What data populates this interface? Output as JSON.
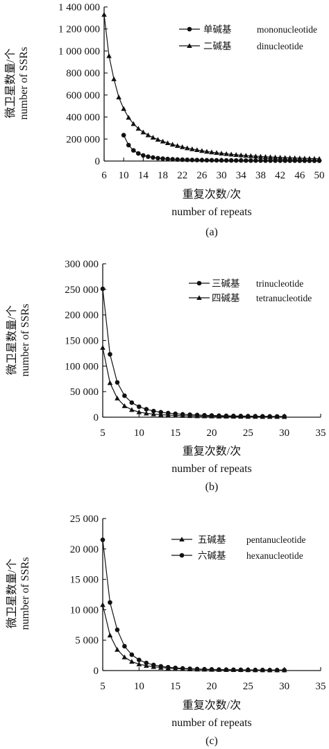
{
  "chart_data": [
    {
      "type": "line",
      "panel_label": "(a)",
      "xlabel_cn": "重复次数/次",
      "xlabel_en": "number of repeats",
      "ylabel_cn": "微卫星数量/个",
      "ylabel_en": "number of SSRs",
      "x_ticks": [
        "6",
        "10",
        "14",
        "18",
        "22",
        "26",
        "30",
        "34",
        "38",
        "42",
        "46",
        "50"
      ],
      "y_ticks": [
        "0",
        "200 000",
        "400 000",
        "600 000",
        "800 000",
        "1 000 000",
        "1 200 000",
        "1 400 000"
      ],
      "xlim": [
        6,
        50
      ],
      "ylim": [
        0,
        1400000
      ],
      "legend_placement": "top-right",
      "series": [
        {
          "name_cn": "单碱基",
          "name_en": "mononucleotide",
          "marker": "circle",
          "x": [
            10,
            11,
            12,
            13,
            14,
            15,
            16,
            17,
            18,
            19,
            20,
            21,
            22,
            23,
            24,
            25,
            26,
            27,
            28,
            29,
            30,
            31,
            32,
            33,
            34,
            35,
            36,
            37,
            38,
            39,
            40,
            41,
            42,
            43,
            44,
            45,
            46,
            47,
            48,
            49,
            50
          ],
          "values": [
            235000,
            145000,
            97000,
            69000,
            51000,
            40000,
            32000,
            26000,
            22000,
            18500,
            16000,
            14000,
            12500,
            11000,
            10000,
            9000,
            8300,
            7700,
            7200,
            6700,
            6300,
            5900,
            5600,
            5300,
            5000,
            4800,
            4600,
            4400,
            4200,
            4000,
            3900,
            3750,
            3600,
            3500,
            3400,
            3300,
            3200,
            3100,
            3000,
            2950,
            2900
          ]
        },
        {
          "name_cn": "二碱基",
          "name_en": "dinucleotide",
          "marker": "triangle",
          "x": [
            6,
            7,
            8,
            9,
            10,
            11,
            12,
            13,
            14,
            15,
            16,
            17,
            18,
            19,
            20,
            21,
            22,
            23,
            24,
            25,
            26,
            27,
            28,
            29,
            30,
            31,
            32,
            33,
            34,
            35,
            36,
            37,
            38,
            39,
            40,
            41,
            42,
            43,
            44,
            45,
            46,
            47,
            48,
            49,
            50
          ],
          "values": [
            1330000,
            955000,
            745000,
            580000,
            475000,
            395000,
            338000,
            295000,
            262000,
            236000,
            214000,
            195000,
            179000,
            164000,
            151000,
            139000,
            128000,
            118000,
            109000,
            101000,
            93500,
            86500,
            80500,
            75000,
            70000,
            65500,
            61000,
            57000,
            53500,
            50000,
            47000,
            44000,
            41500,
            39000,
            36500,
            34500,
            32500,
            30500,
            29000,
            27500,
            26000,
            24500,
            23000,
            22000,
            21000
          ]
        }
      ]
    },
    {
      "type": "line",
      "panel_label": "(b)",
      "xlabel_cn": "重复次数/次",
      "xlabel_en": "number of repeats",
      "ylabel_cn": "微卫星数量/个",
      "ylabel_en": "number of SSRs",
      "x_ticks": [
        "5",
        "10",
        "15",
        "20",
        "25",
        "30",
        "35"
      ],
      "y_ticks": [
        "0",
        "50 000",
        "100 000",
        "150 000",
        "200 000",
        "250 000",
        "300 000"
      ],
      "xlim": [
        5,
        35
      ],
      "ylim": [
        0,
        300000
      ],
      "legend_placement": "top-right",
      "series": [
        {
          "name_cn": "三碱基",
          "name_en": "trinucleotide",
          "marker": "circle",
          "x": [
            5,
            6,
            7,
            8,
            9,
            10,
            11,
            12,
            13,
            14,
            15,
            16,
            17,
            18,
            19,
            20,
            21,
            22,
            23,
            24,
            25,
            26,
            27,
            28,
            29,
            30
          ],
          "values": [
            251000,
            123000,
            68000,
            42000,
            28500,
            20500,
            15500,
            12000,
            9700,
            8000,
            6700,
            5700,
            4900,
            4300,
            3800,
            3400,
            3000,
            2700,
            2450,
            2250,
            2050,
            1900,
            1750,
            1600,
            1500,
            1400
          ]
        },
        {
          "name_cn": "四碱基",
          "name_en": "tetranucleotide",
          "marker": "triangle",
          "x": [
            5,
            6,
            7,
            8,
            9,
            10,
            11,
            12,
            13,
            14,
            15,
            16,
            17,
            18,
            19,
            20,
            21,
            22,
            23,
            24,
            25,
            26,
            27,
            28,
            29,
            30
          ],
          "values": [
            136000,
            67000,
            37000,
            22000,
            14500,
            10000,
            7600,
            6000,
            4900,
            4100,
            3500,
            3000,
            2600,
            2300,
            2050,
            1850,
            1650,
            1500,
            1350,
            1250,
            1150,
            1050,
            980,
            910,
            850,
            800
          ]
        }
      ]
    },
    {
      "type": "line",
      "panel_label": "(c)",
      "xlabel_cn": "重复次数/次",
      "xlabel_en": "number of repeats",
      "ylabel_cn": "微卫星数量/个",
      "ylabel_en": "number of SSRs",
      "x_ticks": [
        "5",
        "10",
        "15",
        "20",
        "25",
        "30",
        "35"
      ],
      "y_ticks": [
        "0",
        "5 000",
        "10 000",
        "15 000",
        "20 000",
        "25 000"
      ],
      "xlim": [
        5,
        35
      ],
      "ylim": [
        0,
        25000
      ],
      "legend_placement": "top-right",
      "series": [
        {
          "name_cn": "五碱基",
          "name_en": "pentanucleotide",
          "marker": "triangle",
          "x": [
            5,
            6,
            7,
            8,
            9,
            10,
            11,
            12,
            13,
            14,
            15,
            16,
            17,
            18,
            19,
            20,
            21,
            22,
            23,
            24,
            25,
            26,
            27,
            28,
            29,
            30
          ],
          "values": [
            10800,
            5800,
            3450,
            2200,
            1480,
            1050,
            800,
            620,
            490,
            400,
            330,
            280,
            240,
            210,
            185,
            165,
            150,
            135,
            122,
            112,
            103,
            95,
            88,
            82,
            77,
            72
          ]
        },
        {
          "name_cn": "六碱基",
          "name_en": "hexanucleotide",
          "marker": "circle",
          "x": [
            5,
            6,
            7,
            8,
            9,
            10,
            11,
            12,
            13,
            14,
            15,
            16,
            17,
            18,
            19,
            20,
            21,
            22,
            23,
            24,
            25,
            26,
            27,
            28,
            29,
            30
          ],
          "values": [
            21500,
            11200,
            6700,
            4000,
            2600,
            1750,
            1250,
            920,
            700,
            550,
            440,
            360,
            300,
            255,
            220,
            190,
            165,
            145,
            130,
            117,
            106,
            96,
            88,
            81,
            75,
            70
          ]
        }
      ]
    }
  ]
}
